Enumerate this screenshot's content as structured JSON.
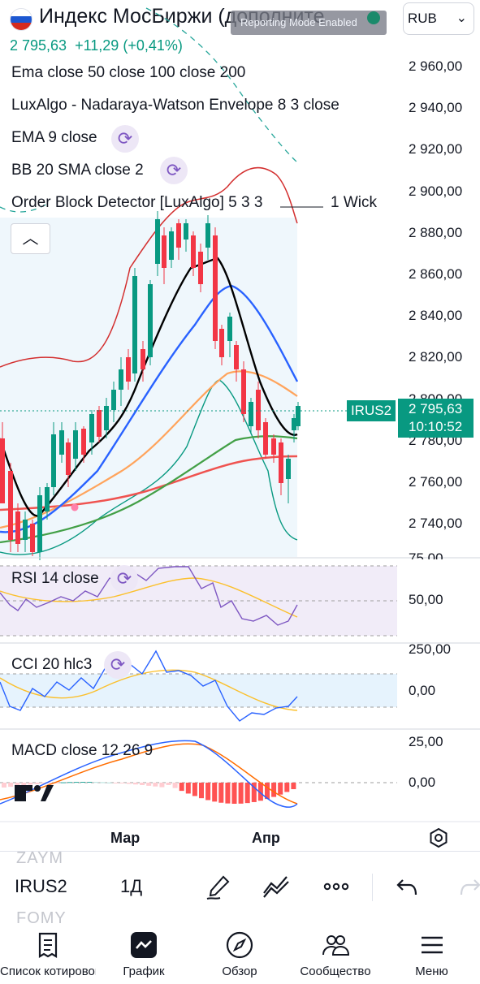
{
  "header": {
    "title": "Индекс МосБиржи (дополните",
    "toast": "Reporting Mode Enabled",
    "currency": "RUB",
    "price": "2 795,63",
    "change": "+11,29",
    "change_pct": "(+0,41%)",
    "flag_colors": [
      "#ffffff",
      "#1c57d1",
      "#d52b1e"
    ]
  },
  "legend": {
    "ema": "Ema close 50 close 100 close 200",
    "luxalgo": "LuxAlgo - Nadaraya-Watson Envelope 8 3 close",
    "ema9": "EMA 9 close",
    "bb": "BB 20 SMA close 2",
    "ob": "Order Block Detector [LuxAlgo] 5 3 3",
    "ob_suffix": "1 Wick",
    "collapse_icon": "chevron-up-icon",
    "refresh_icon": "refresh-icon"
  },
  "price_axis": {
    "labels": [
      "2 960,00",
      "2 940,00",
      "2 920,00",
      "2 900,00",
      "2 880,00",
      "2 860,00",
      "2 840,00",
      "2 820,00",
      "2 800,00",
      "2 780,00",
      "2 760,00",
      "2 740,00"
    ],
    "symbol_tag": "IRUS2",
    "last_price": "2 795,63",
    "countdown": "10:10:52",
    "up_color": "#089981",
    "down_color": "#f23645"
  },
  "rsi": {
    "label": "RSI 14 close",
    "axis": [
      "75,00",
      "50,00"
    ]
  },
  "cci": {
    "label": "CCI 20 hlc3",
    "axis": [
      "250,00",
      "0,00"
    ]
  },
  "macd": {
    "label": "MACD close 12 26 9",
    "axis": [
      "25,00",
      "0,00"
    ]
  },
  "time_axis": {
    "labels": [
      "Мар",
      "Апр"
    ],
    "settings_icon": "gear-icon"
  },
  "toolbar": {
    "symbols_above": "ZAYM",
    "symbol": "IRUS2",
    "symbols_below": "FOMY",
    "interval": "1Д",
    "icons": [
      "brush-icon",
      "indicators-icon",
      "more-icon",
      "undo-icon",
      "redo-icon"
    ]
  },
  "nav": {
    "items": [
      {
        "label": "Список котировок",
        "icon": "watchlist-icon"
      },
      {
        "label": "График",
        "icon": "chart-icon"
      },
      {
        "label": "Обзор",
        "icon": "compass-icon"
      },
      {
        "label": "Сообщество",
        "icon": "community-icon"
      },
      {
        "label": "Меню",
        "icon": "menu-icon"
      }
    ]
  }
}
